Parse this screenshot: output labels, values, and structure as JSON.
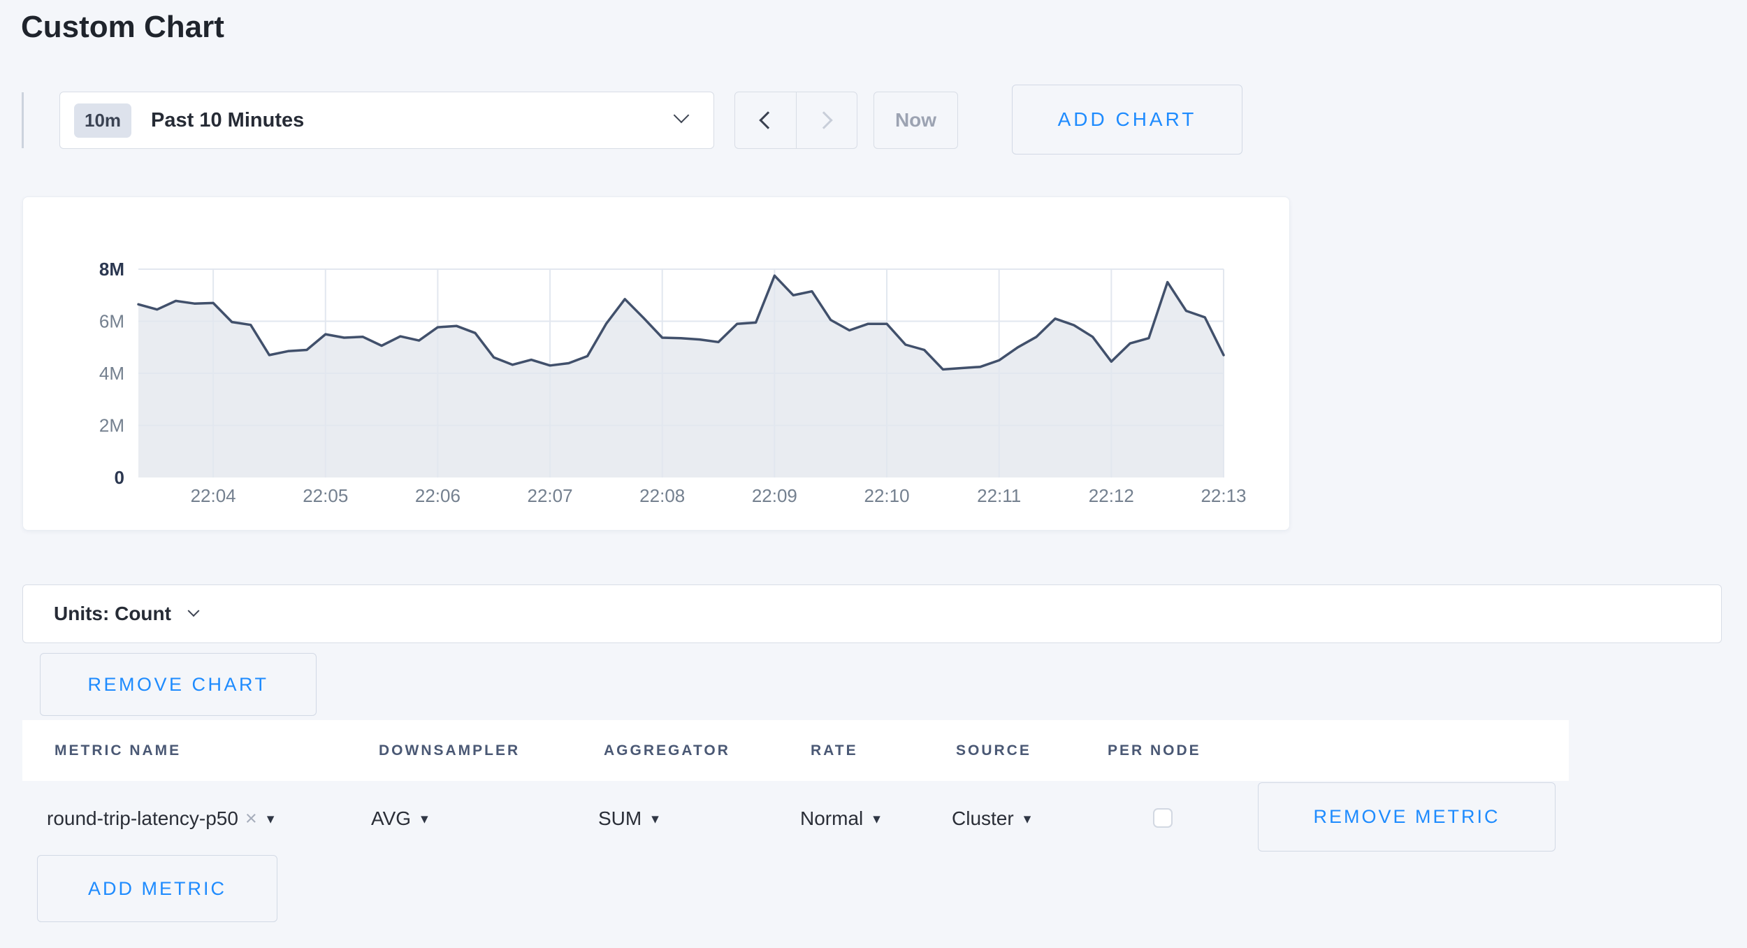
{
  "page": {
    "title": "Custom Chart",
    "background": "#f4f6fa",
    "accent_blue": "#1e8bfe"
  },
  "toolbar": {
    "time_range": {
      "badge": "10m",
      "label": "Past 10 Minutes"
    },
    "now_label": "Now",
    "add_chart_label": "ADD CHART"
  },
  "chart_data": {
    "type": "area",
    "title": "",
    "series_name": "round-trip-latency-p50",
    "start_time": "22:03:20",
    "interval_seconds": 10,
    "values_millions": [
      6.65,
      6.45,
      6.78,
      6.68,
      6.7,
      5.97,
      5.86,
      4.7,
      4.85,
      4.9,
      5.5,
      5.37,
      5.4,
      5.06,
      5.42,
      5.26,
      5.77,
      5.82,
      5.55,
      4.61,
      4.33,
      4.52,
      4.3,
      4.39,
      4.66,
      5.9,
      6.85,
      6.13,
      5.37,
      5.35,
      5.3,
      5.2,
      5.9,
      5.95,
      7.75,
      7.0,
      7.15,
      6.05,
      5.65,
      5.9,
      5.9,
      5.1,
      4.9,
      4.15,
      4.2,
      4.25,
      4.5,
      5.0,
      5.4,
      6.1,
      5.85,
      5.4,
      4.45,
      5.15,
      5.35,
      7.5,
      6.4,
      6.15,
      4.7
    ],
    "x_tick_labels": [
      "22:04",
      "22:05",
      "22:06",
      "22:07",
      "22:08",
      "22:09",
      "22:10",
      "22:11",
      "22:12",
      "22:13"
    ],
    "first_tick_index": 4,
    "ticks_every": 6,
    "ylim": [
      0,
      8
    ],
    "y_ticks": [
      {
        "label": "8M",
        "value": 8,
        "emphasis": true
      },
      {
        "label": "6M",
        "value": 6,
        "emphasis": false
      },
      {
        "label": "4M",
        "value": 4,
        "emphasis": false
      },
      {
        "label": "2M",
        "value": 2,
        "emphasis": false
      },
      {
        "label": "0",
        "value": 0,
        "emphasis": true
      }
    ],
    "grid": true,
    "legend": "none",
    "line_color": "#41506b",
    "fill_color": "#e9ecf1",
    "grid_color": "#e2e7ef"
  },
  "units_bar": {
    "label": "Units: Count"
  },
  "chart_actions": {
    "remove_chart_label": "REMOVE CHART"
  },
  "metrics_table": {
    "headers": [
      "METRIC NAME",
      "DOWNSAMPLER",
      "AGGREGATOR",
      "RATE",
      "SOURCE",
      "PER NODE"
    ],
    "rows": [
      {
        "metric_name": "round-trip-latency-p50",
        "downsampler": "AVG",
        "aggregator": "SUM",
        "rate": "Normal",
        "source": "Cluster",
        "per_node_checked": false,
        "remove_label": "REMOVE METRIC"
      }
    ],
    "add_metric_label": "ADD METRIC"
  },
  "icons": {
    "caret_down": "▾",
    "clear_x": "×"
  }
}
